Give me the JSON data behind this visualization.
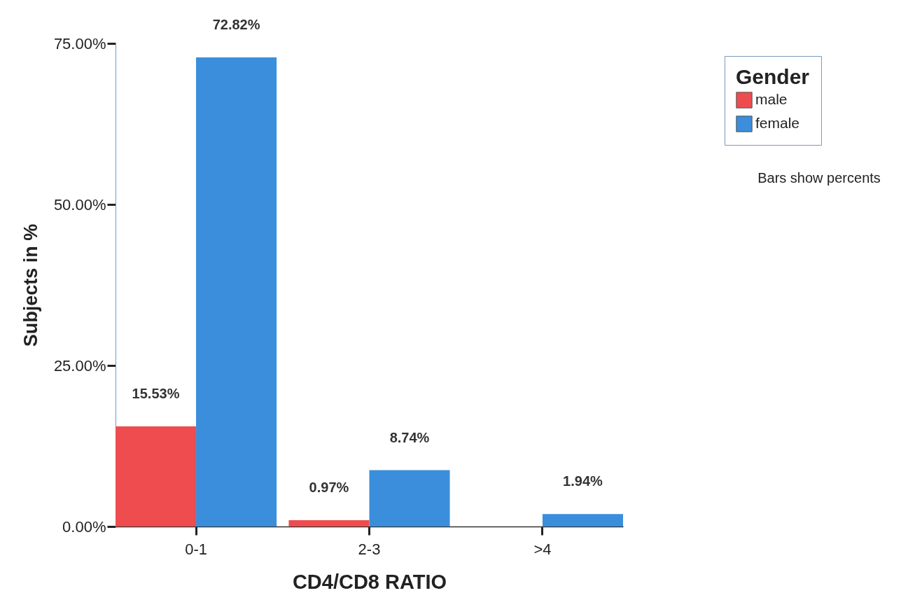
{
  "chart_data": {
    "type": "bar",
    "xlabel": "CD4/CD8 RATIO",
    "ylabel": "Subjects in %",
    "legend_title": "Gender",
    "legend": "top right",
    "grid": false,
    "categories": [
      "0-1",
      "2-3",
      ">4"
    ],
    "series": [
      {
        "name": "male",
        "color": "#ee4c4e",
        "values": [
          15.53,
          0.97,
          null
        ],
        "value_labels": [
          "15.53%",
          "0.97%",
          null
        ]
      },
      {
        "name": "female",
        "color": "#3a8edb",
        "values": [
          72.82,
          8.74,
          1.94
        ],
        "value_labels": [
          "72.82%",
          "8.74%",
          "1.94%"
        ]
      }
    ],
    "ylim": [
      0,
      75
    ],
    "yticks": [
      {
        "value": 0,
        "label": "0.00%"
      },
      {
        "value": 25,
        "label": "25.00%"
      },
      {
        "value": 50,
        "label": "50.00%"
      },
      {
        "value": 75,
        "label": "75.00%"
      }
    ],
    "annotations": [
      "Bars show percents"
    ]
  }
}
